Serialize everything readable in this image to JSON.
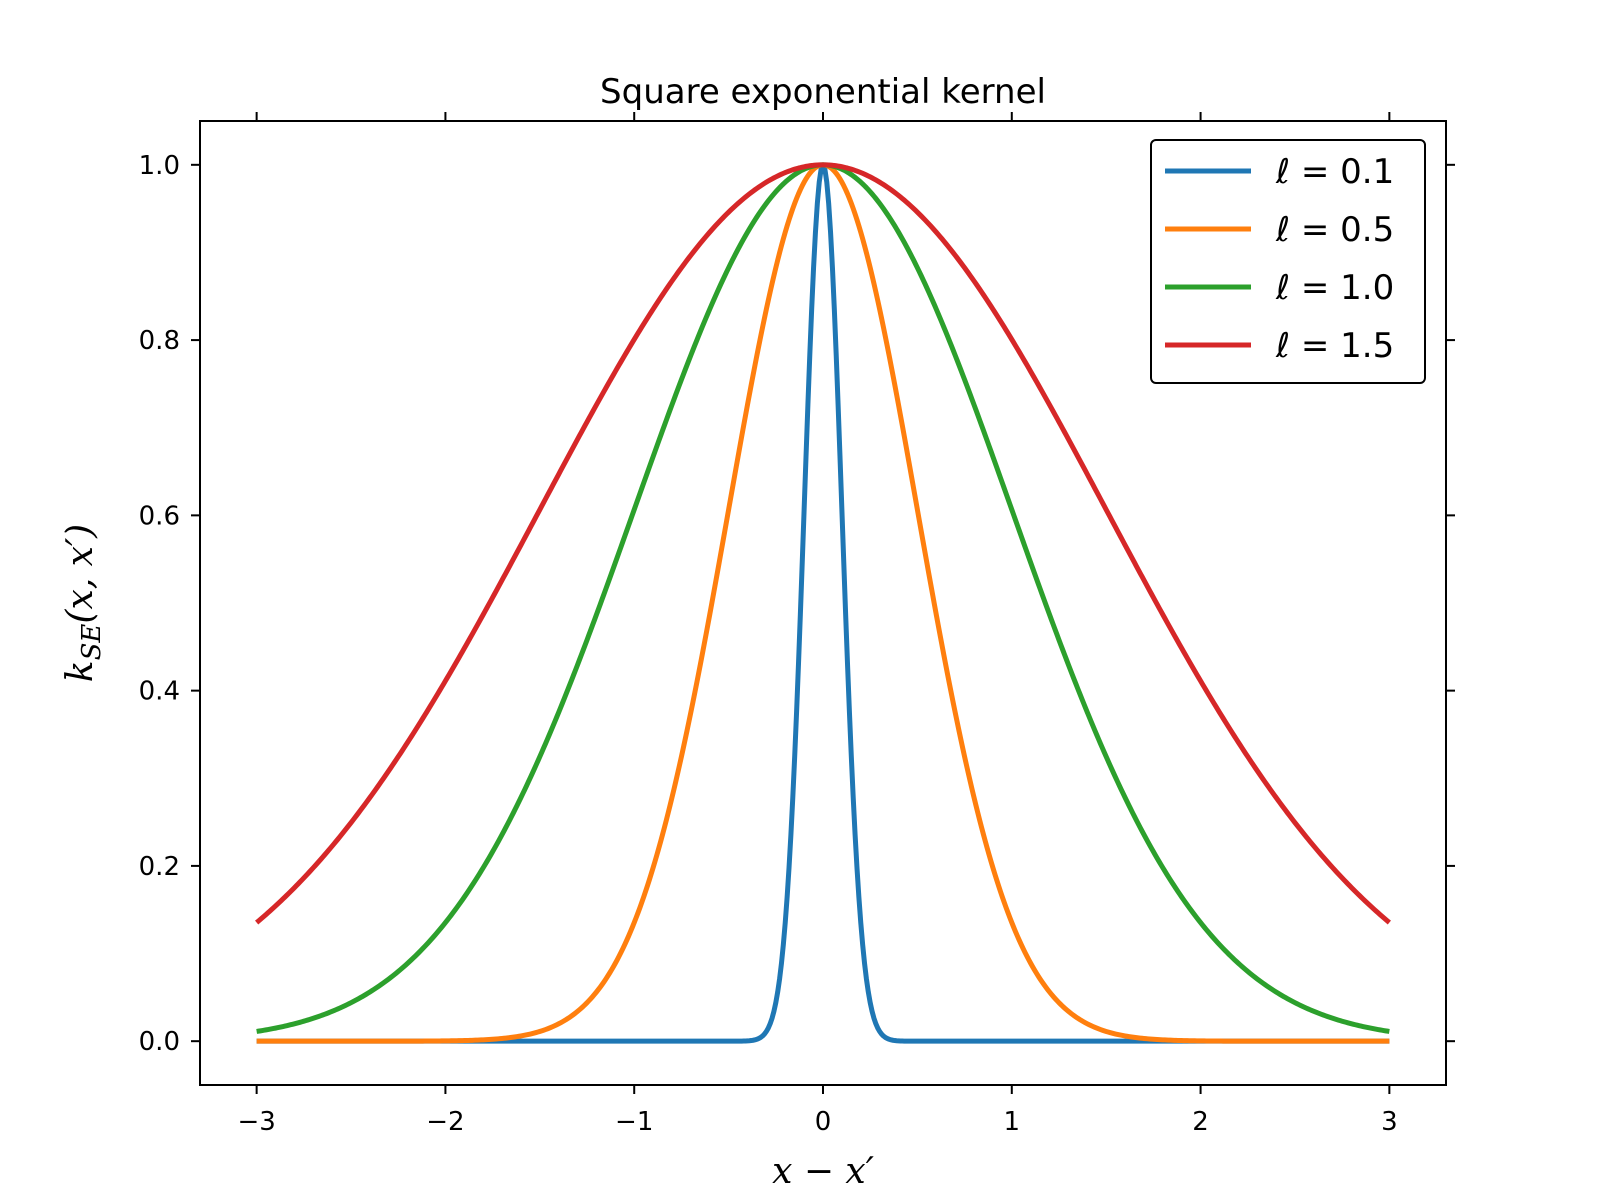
{
  "chart_data": {
    "type": "line",
    "title": "Square exponential kernel",
    "xlabel": "x − x′",
    "ylabel": "k_SE(x, x′)",
    "ylabel_main": "k",
    "ylabel_sub": "SE",
    "ylabel_rest": "(x, x′)",
    "xlim": [
      -3.3,
      3.3
    ],
    "ylim": [
      -0.05,
      1.05
    ],
    "x_ticks": [
      -3,
      -2,
      -1,
      0,
      1,
      2,
      3
    ],
    "x_tick_labels": [
      "−3",
      "−2",
      "−1",
      "0",
      "1",
      "2",
      "3"
    ],
    "y_ticks": [
      0.0,
      0.2,
      0.4,
      0.6,
      0.8,
      1.0
    ],
    "y_tick_labels": [
      "0.0",
      "0.2",
      "0.4",
      "0.6",
      "0.8",
      "1.0"
    ],
    "grid": false,
    "legend_position": "top-right",
    "x": [
      -3.0,
      -2.5,
      -2.0,
      -1.5,
      -1.0,
      -0.75,
      -0.5,
      -0.4,
      -0.3,
      -0.25,
      -0.2,
      -0.15,
      -0.1,
      -0.05,
      0.0,
      0.05,
      0.1,
      0.15,
      0.2,
      0.25,
      0.3,
      0.4,
      0.5,
      0.75,
      1.0,
      1.5,
      2.0,
      2.5,
      3.0
    ],
    "series": [
      {
        "name": "ℓ = 0.1",
        "color": "#1f77b4",
        "values": [
          0.0,
          0.0,
          0.0,
          0.0,
          0.0,
          0.0,
          0.0,
          0.0003,
          0.011,
          0.044,
          0.135,
          0.325,
          0.607,
          0.882,
          1.0,
          0.882,
          0.607,
          0.325,
          0.135,
          0.044,
          0.011,
          0.0003,
          0.0,
          0.0,
          0.0,
          0.0,
          0.0,
          0.0,
          0.0
        ]
      },
      {
        "name": "ℓ = 0.5",
        "color": "#ff7f0e",
        "values": [
          0.0,
          0.0,
          0.0003,
          0.011,
          0.135,
          0.325,
          0.607,
          0.726,
          0.835,
          0.882,
          0.923,
          0.956,
          0.98,
          0.995,
          1.0,
          0.995,
          0.98,
          0.956,
          0.923,
          0.882,
          0.835,
          0.726,
          0.607,
          0.325,
          0.135,
          0.011,
          0.0003,
          0.0,
          0.0
        ]
      },
      {
        "name": "ℓ = 1.0",
        "color": "#2ca02c",
        "values": [
          0.011,
          0.044,
          0.135,
          0.325,
          0.607,
          0.755,
          0.882,
          0.923,
          0.956,
          0.969,
          0.98,
          0.989,
          0.995,
          0.999,
          1.0,
          0.999,
          0.995,
          0.989,
          0.98,
          0.969,
          0.956,
          0.923,
          0.882,
          0.755,
          0.607,
          0.325,
          0.135,
          0.044,
          0.011
        ]
      },
      {
        "name": "ℓ = 1.5",
        "color": "#d62728",
        "values": [
          0.135,
          0.249,
          0.411,
          0.607,
          0.801,
          0.882,
          0.946,
          0.965,
          0.98,
          0.986,
          0.991,
          0.995,
          0.998,
          0.999,
          1.0,
          0.999,
          0.998,
          0.995,
          0.991,
          0.986,
          0.98,
          0.965,
          0.946,
          0.882,
          0.801,
          0.607,
          0.411,
          0.249,
          0.135
        ]
      }
    ]
  }
}
